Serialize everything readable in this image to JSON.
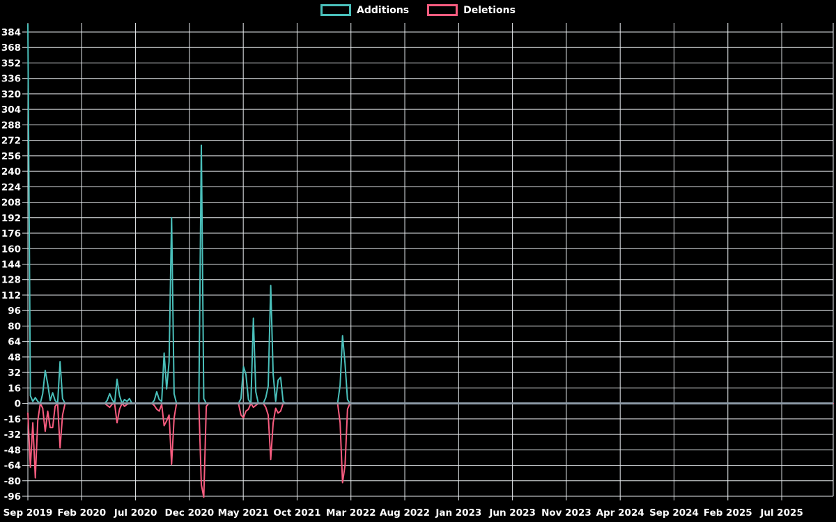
{
  "legend": {
    "items": [
      {
        "label": "Additions",
        "color": "#4ac0bb"
      },
      {
        "label": "Deletions",
        "color": "#f85c7f"
      }
    ]
  },
  "chart_data": {
    "type": "line",
    "title": "",
    "background": "#000000",
    "grid_color": "#e9edf0",
    "zero_line_color": "#8c9aa6",
    "axis_text_color": "#ffffff",
    "grid": true,
    "legend_position": "top-center",
    "y_axis": {
      "min": -96,
      "max": 384,
      "step": 16
    },
    "x_axis": {
      "tick_labels": [
        "Sep 2019",
        "Feb 2020",
        "Jul 2020",
        "Dec 2020",
        "May 2021",
        "Oct 2021",
        "Mar 2022",
        "Aug 2022",
        "Jan 2023",
        "Jun 2023",
        "Nov 2023",
        "Apr 2024",
        "Sep 2024",
        "Feb 2025",
        "Jul 2025"
      ],
      "weeks_between_ticks": 21.73,
      "total_weeks": 325
    },
    "series": [
      {
        "name": "Additions",
        "color": "#4ac0bb",
        "points": [
          [
            0,
            392
          ],
          [
            1,
            8
          ],
          [
            2,
            2
          ],
          [
            3,
            6
          ],
          [
            4,
            2
          ],
          [
            5,
            0
          ],
          [
            6,
            10
          ],
          [
            7,
            34
          ],
          [
            8,
            20
          ],
          [
            9,
            3
          ],
          [
            10,
            11
          ],
          [
            11,
            3
          ],
          [
            12,
            0
          ],
          [
            13,
            43
          ],
          [
            14,
            5
          ],
          [
            15,
            0
          ],
          [
            31,
            0
          ],
          [
            32,
            3
          ],
          [
            33,
            10
          ],
          [
            34,
            4
          ],
          [
            35,
            0
          ],
          [
            36,
            25
          ],
          [
            37,
            8
          ],
          [
            38,
            0
          ],
          [
            39,
            4
          ],
          [
            40,
            2
          ],
          [
            41,
            5
          ],
          [
            42,
            0
          ],
          [
            50,
            0
          ],
          [
            51,
            3
          ],
          [
            52,
            12
          ],
          [
            53,
            4
          ],
          [
            54,
            2
          ],
          [
            55,
            52
          ],
          [
            56,
            15
          ],
          [
            57,
            43
          ],
          [
            58,
            192
          ],
          [
            59,
            10
          ],
          [
            60,
            0
          ],
          [
            69,
            0
          ],
          [
            70,
            267
          ],
          [
            71,
            5
          ],
          [
            72,
            0
          ],
          [
            85,
            0
          ],
          [
            86,
            5
          ],
          [
            87,
            38
          ],
          [
            88,
            30
          ],
          [
            89,
            4
          ],
          [
            90,
            0
          ],
          [
            91,
            88
          ],
          [
            92,
            12
          ],
          [
            93,
            0
          ],
          [
            95,
            0
          ],
          [
            96,
            6
          ],
          [
            97,
            18
          ],
          [
            98,
            122
          ],
          [
            99,
            30
          ],
          [
            100,
            2
          ],
          [
            101,
            24
          ],
          [
            102,
            27
          ],
          [
            103,
            2
          ],
          [
            104,
            0
          ],
          [
            125,
            0
          ],
          [
            126,
            19
          ],
          [
            127,
            70
          ],
          [
            128,
            41
          ],
          [
            129,
            4
          ],
          [
            130,
            0
          ],
          [
            325,
            0
          ]
        ]
      },
      {
        "name": "Deletions",
        "color": "#f85c7f",
        "points": [
          [
            0,
            -10
          ],
          [
            1,
            -66
          ],
          [
            2,
            -20
          ],
          [
            3,
            -77
          ],
          [
            4,
            -18
          ],
          [
            5,
            0
          ],
          [
            6,
            -5
          ],
          [
            7,
            -29
          ],
          [
            8,
            -8
          ],
          [
            9,
            -25
          ],
          [
            10,
            -25
          ],
          [
            11,
            -3
          ],
          [
            12,
            0
          ],
          [
            13,
            -46
          ],
          [
            14,
            -12
          ],
          [
            15,
            0
          ],
          [
            31,
            0
          ],
          [
            32,
            -2
          ],
          [
            33,
            -4
          ],
          [
            34,
            -1
          ],
          [
            35,
            0
          ],
          [
            36,
            -20
          ],
          [
            37,
            -6
          ],
          [
            38,
            0
          ],
          [
            39,
            -3
          ],
          [
            40,
            -1
          ],
          [
            41,
            0
          ],
          [
            42,
            0
          ],
          [
            50,
            0
          ],
          [
            51,
            -2
          ],
          [
            52,
            -6
          ],
          [
            53,
            -8
          ],
          [
            54,
            -1
          ],
          [
            55,
            -23
          ],
          [
            56,
            -18
          ],
          [
            57,
            -12
          ],
          [
            58,
            -63
          ],
          [
            59,
            -15
          ],
          [
            60,
            0
          ],
          [
            69,
            0
          ],
          [
            70,
            -84
          ],
          [
            71,
            -97
          ],
          [
            72,
            -3
          ],
          [
            73,
            0
          ],
          [
            85,
            0
          ],
          [
            86,
            -12
          ],
          [
            87,
            -15
          ],
          [
            88,
            -8
          ],
          [
            89,
            -6
          ],
          [
            90,
            0
          ],
          [
            91,
            -4
          ],
          [
            92,
            -2
          ],
          [
            93,
            0
          ],
          [
            95,
            0
          ],
          [
            96,
            -4
          ],
          [
            97,
            -12
          ],
          [
            98,
            -58
          ],
          [
            99,
            -20
          ],
          [
            100,
            -5
          ],
          [
            101,
            -10
          ],
          [
            102,
            -8
          ],
          [
            103,
            0
          ],
          [
            125,
            0
          ],
          [
            126,
            -20
          ],
          [
            127,
            -82
          ],
          [
            128,
            -64
          ],
          [
            129,
            -6
          ],
          [
            130,
            0
          ],
          [
            325,
            0
          ]
        ]
      }
    ]
  }
}
